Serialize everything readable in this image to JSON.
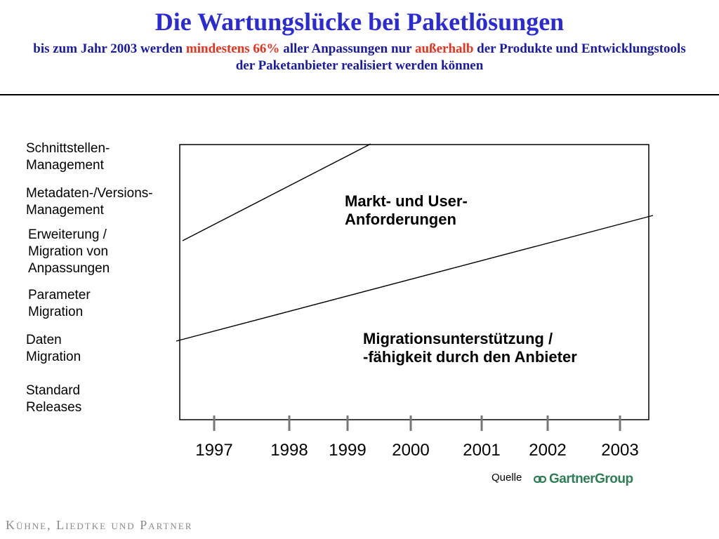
{
  "title": "Die Wartungslücke bei Paketlösungen",
  "subtitle": {
    "part1": "bis zum Jahr 2003 werden ",
    "highlight1": "mindestens 66%",
    "part2": " aller Anpassungen nur ",
    "highlight2": "außerhalb",
    "part3": " der Produkte und Entwicklungstools der Paketanbieter realisiert werden können"
  },
  "y_categories": [
    "Schnittstellen-\nManagement",
    "Metadaten-/Versions-\nManagement",
    "Erweiterung /\nMigration von\nAnpassungen",
    "Parameter\nMigration",
    "Daten\nMigration",
    "Standard\nReleases"
  ],
  "chart_data": {
    "type": "line",
    "x": [
      "1997",
      "1998",
      "1999",
      "2000",
      "2001",
      "2002",
      "2003"
    ],
    "series": [
      {
        "line": "upper",
        "from": "1997",
        "to": "1999"
      },
      {
        "line": "lower",
        "from": "1997",
        "to": "2003"
      }
    ],
    "regions": {
      "upper": "Markt- und User-\nAnforderungen",
      "lower": "Migrationsunterstützung /\n-fähigkeit durch den Anbieter"
    },
    "grid": false
  },
  "source": {
    "label": "Quelle",
    "logo_text": "GartnerGroup"
  },
  "footer": "Kühne, Liedtke und Partner",
  "colors": {
    "title": "#2b2bd6",
    "subtitle": "#1a1aa8",
    "highlight": "#e8321e",
    "tick": "#777777",
    "logo": "#2e7d55"
  }
}
